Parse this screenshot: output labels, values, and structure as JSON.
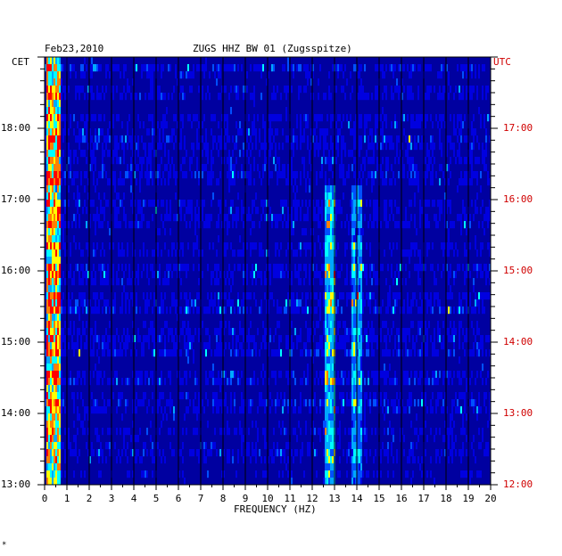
{
  "header": {
    "date": "Feb23,2010",
    "station": "ZUGS HHZ BW 01 (Zugsspitze)",
    "left_zone": "CET",
    "right_zone": "UTC"
  },
  "footer": {
    "mark": "*"
  },
  "colors": {
    "background": "#0000a0",
    "grid": "#000000",
    "utc_labels": "#d00000",
    "palette": [
      "#00009a",
      "#0000e0",
      "#0050ff",
      "#00a8ff",
      "#00ffff",
      "#ffff00",
      "#ff8000",
      "#ff0000"
    ]
  },
  "chart_data": {
    "type": "heatmap",
    "title": "ZUGS HHZ BW 01 (Zugsspitze)",
    "xlabel": "FREQUENCY (HZ)",
    "xlim": [
      0,
      20
    ],
    "x_ticks": [
      "0",
      "1",
      "2",
      "3",
      "4",
      "5",
      "6",
      "7",
      "8",
      "9",
      "10",
      "11",
      "12",
      "13",
      "14",
      "15",
      "16",
      "17",
      "18",
      "19",
      "20"
    ],
    "left_axis": {
      "zone": "CET",
      "range": [
        "13:00",
        "19:00"
      ],
      "ticks": [
        "13:00",
        "14:00",
        "15:00",
        "16:00",
        "17:00",
        "18:00"
      ]
    },
    "right_axis": {
      "zone": "UTC",
      "range": [
        "12:00",
        "18:00"
      ],
      "ticks": [
        "12:00",
        "13:00",
        "14:00",
        "15:00",
        "16:00",
        "17:00"
      ]
    },
    "features": [
      {
        "name": "low-frequency band",
        "freq_hz": [
          0.1,
          0.7
        ],
        "time_utc": [
          "12:00",
          "18:00"
        ],
        "level": 0.9
      },
      {
        "name": "spectral line ~12.8 Hz",
        "freq_hz": [
          12.6,
          13.0
        ],
        "time_utc": [
          "12:00",
          "16:10"
        ],
        "level": 0.6
      },
      {
        "name": "spectral line ~14 Hz",
        "freq_hz": [
          13.8,
          14.2
        ],
        "time_utc": [
          "12:00",
          "16:10"
        ],
        "level": 0.45
      }
    ]
  }
}
